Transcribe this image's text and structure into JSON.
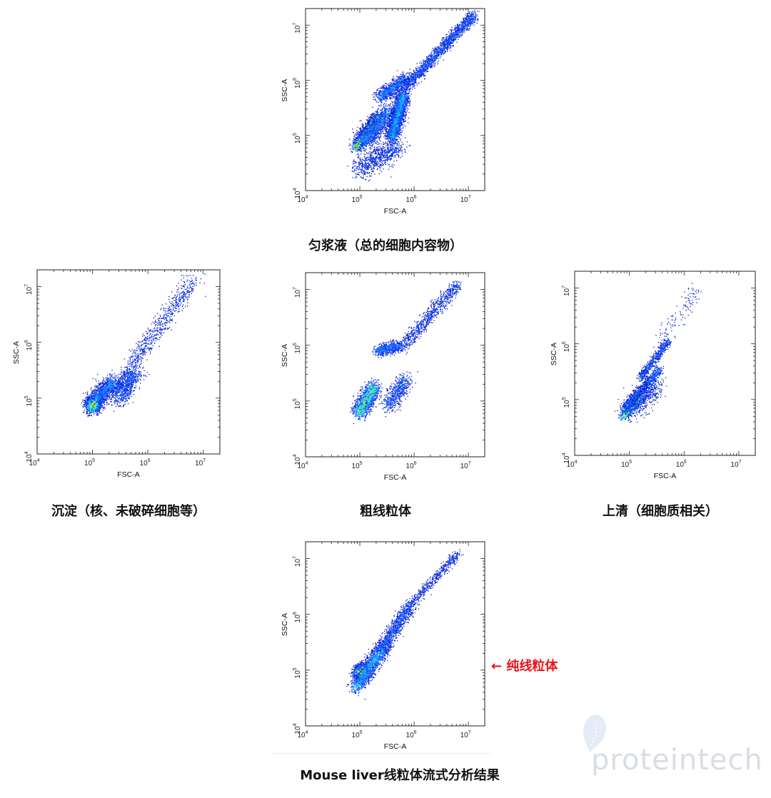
{
  "palette": [
    "#0016c8",
    "#0a3cf0",
    "#1e6cff",
    "#18b4ff",
    "#2ee8d4",
    "#8af064",
    "#f4f02a",
    "#ff9a18",
    "#ff3a10"
  ],
  "watermark": {
    "text": "proteintech",
    "tm": "™"
  },
  "annotation": {
    "text": "← 纯线粒体",
    "color": "#e8141b"
  },
  "chart_data": [
    {
      "id": "homogenate",
      "type": "scatter",
      "title": "匀浆液（总的细胞内容物）",
      "xlabel": "FSC-A",
      "ylabel": "SSC-A",
      "xscale": "log",
      "yscale": "log",
      "xlim": [
        10000,
        20000000
      ],
      "ylim": [
        10000,
        20000000
      ],
      "xticks": [
        10000,
        100000,
        1000000,
        10000000
      ],
      "yticks": [
        10000,
        100000,
        1000000,
        10000000
      ],
      "tick_labels": [
        "10^4",
        "10^5",
        "10^6",
        "10^7"
      ],
      "grid": false,
      "populations": [
        {
          "x": [
            4.91,
            5.3
          ],
          "y": [
            4.78,
            5.32
          ],
          "spread": 0.045,
          "n": 2200,
          "density": 8
        },
        {
          "x": [
            5.05,
            5.55
          ],
          "y": [
            4.9,
            5.45
          ],
          "spread": 0.09,
          "n": 1600,
          "density": 3
        },
        {
          "x": [
            5.58,
            5.8
          ],
          "y": [
            4.95,
            5.75
          ],
          "spread": 0.06,
          "n": 2600,
          "density": 4
        },
        {
          "x": [
            5.35,
            5.85
          ],
          "y": [
            5.7,
            6.05
          ],
          "spread": 0.06,
          "n": 1000,
          "density": 3
        },
        {
          "x": [
            5.8,
            7.1
          ],
          "y": [
            5.85,
            7.2
          ],
          "spread": 0.05,
          "n": 1800,
          "density": 2
        },
        {
          "x": [
            4.95,
            5.7
          ],
          "y": [
            4.4,
            4.8
          ],
          "spread": 0.1,
          "n": 800,
          "density": 1
        }
      ]
    },
    {
      "id": "pellet",
      "type": "scatter",
      "title": "沉淀（核、未破碎细胞等）",
      "xlabel": "FSC-A",
      "ylabel": "SSC-A",
      "xscale": "log",
      "yscale": "log",
      "xlim": [
        10000,
        20000000
      ],
      "ylim": [
        10000,
        20000000
      ],
      "xticks": [
        10000,
        100000,
        1000000,
        10000000
      ],
      "yticks": [
        10000,
        100000,
        1000000,
        10000000
      ],
      "tick_labels": [
        "10^4",
        "10^5",
        "10^6",
        "10^7"
      ],
      "grid": false,
      "populations": [
        {
          "x": [
            4.98,
            5.05
          ],
          "y": [
            4.85,
            4.95
          ],
          "spread": 0.07,
          "n": 1400,
          "density": 7
        },
        {
          "x": [
            5.05,
            5.4
          ],
          "y": [
            5.0,
            5.3
          ],
          "spread": 0.08,
          "n": 1000,
          "density": 3
        },
        {
          "x": [
            5.45,
            5.75
          ],
          "y": [
            5.0,
            5.5
          ],
          "spread": 0.09,
          "n": 900,
          "density": 2
        },
        {
          "x": [
            5.7,
            6.8
          ],
          "y": [
            5.6,
            7.1
          ],
          "spread": 0.08,
          "n": 700,
          "density": 1
        }
      ]
    },
    {
      "id": "crude-mito",
      "type": "scatter",
      "title": "粗线粒体",
      "xlabel": "FSC-A",
      "ylabel": "SSC-A",
      "xscale": "log",
      "yscale": "log",
      "xlim": [
        10000,
        20000000
      ],
      "ylim": [
        10000,
        20000000
      ],
      "xticks": [
        10000,
        100000,
        1000000,
        10000000
      ],
      "yticks": [
        10000,
        100000,
        1000000,
        10000000
      ],
      "tick_labels": [
        "10^4",
        "10^5",
        "10^6",
        "10^7"
      ],
      "grid": false,
      "populations": [
        {
          "x": [
            4.98,
            5.25
          ],
          "y": [
            4.8,
            5.25
          ],
          "spread": 0.07,
          "n": 1500,
          "density": 6
        },
        {
          "x": [
            5.3,
            5.75
          ],
          "y": [
            5.9,
            6.0
          ],
          "spread": 0.05,
          "n": 700,
          "density": 3
        },
        {
          "x": [
            5.5,
            5.85
          ],
          "y": [
            4.9,
            5.4
          ],
          "spread": 0.08,
          "n": 600,
          "density": 2
        },
        {
          "x": [
            5.8,
            6.8
          ],
          "y": [
            6.0,
            7.1
          ],
          "spread": 0.06,
          "n": 800,
          "density": 1
        }
      ]
    },
    {
      "id": "supernatant",
      "type": "scatter",
      "title": "上清（细胞质相关）",
      "xlabel": "FSC-A",
      "ylabel": "SSC-A",
      "xscale": "log",
      "yscale": "log",
      "xlim": [
        10000,
        20000000
      ],
      "ylim": [
        10000,
        20000000
      ],
      "xticks": [
        10000,
        100000,
        1000000,
        10000000
      ],
      "yticks": [
        10000,
        100000,
        1000000,
        10000000
      ],
      "tick_labels": [
        "10^4",
        "10^5",
        "10^6",
        "10^7"
      ],
      "grid": false,
      "populations": [
        {
          "x": [
            4.88,
            5.2
          ],
          "y": [
            4.7,
            5.05
          ],
          "spread": 0.04,
          "n": 1000,
          "density": 7
        },
        {
          "x": [
            4.9,
            5.55
          ],
          "y": [
            4.85,
            5.55
          ],
          "spread": 0.04,
          "n": 900,
          "density": 3
        },
        {
          "x": [
            5.2,
            5.7
          ],
          "y": [
            5.4,
            6.05
          ],
          "spread": 0.035,
          "n": 600,
          "density": 2
        },
        {
          "x": [
            5.0,
            5.5
          ],
          "y": [
            4.8,
            5.3
          ],
          "spread": 0.1,
          "n": 600,
          "density": 1
        },
        {
          "x": [
            5.6,
            6.25
          ],
          "y": [
            6.1,
            7.0
          ],
          "spread": 0.08,
          "n": 120,
          "density": 1
        }
      ]
    },
    {
      "id": "pure-mito",
      "type": "scatter",
      "title": "Mouse liver线粒体流式分析结果",
      "xlabel": "FSC-A",
      "ylabel": "SSC-A",
      "xscale": "log",
      "yscale": "log",
      "xlim": [
        10000,
        20000000
      ],
      "ylim": [
        10000,
        20000000
      ],
      "xticks": [
        10000,
        100000,
        1000000,
        10000000
      ],
      "yticks": [
        10000,
        100000,
        1000000,
        10000000
      ],
      "tick_labels": [
        "10^4",
        "10^5",
        "10^6",
        "10^7"
      ],
      "grid": false,
      "populations": [
        {
          "x": [
            4.98,
            5.05
          ],
          "y": [
            4.95,
            5.02
          ],
          "spread": 0.06,
          "n": 1500,
          "density": 8
        },
        {
          "x": [
            4.92,
            5.45
          ],
          "y": [
            4.7,
            5.45
          ],
          "spread": 0.07,
          "n": 1600,
          "density": 4
        },
        {
          "x": [
            5.4,
            5.95
          ],
          "y": [
            5.4,
            6.2
          ],
          "spread": 0.06,
          "n": 1000,
          "density": 2
        },
        {
          "x": [
            5.95,
            6.8
          ],
          "y": [
            6.2,
            7.1
          ],
          "spread": 0.04,
          "n": 500,
          "density": 1
        }
      ]
    }
  ]
}
